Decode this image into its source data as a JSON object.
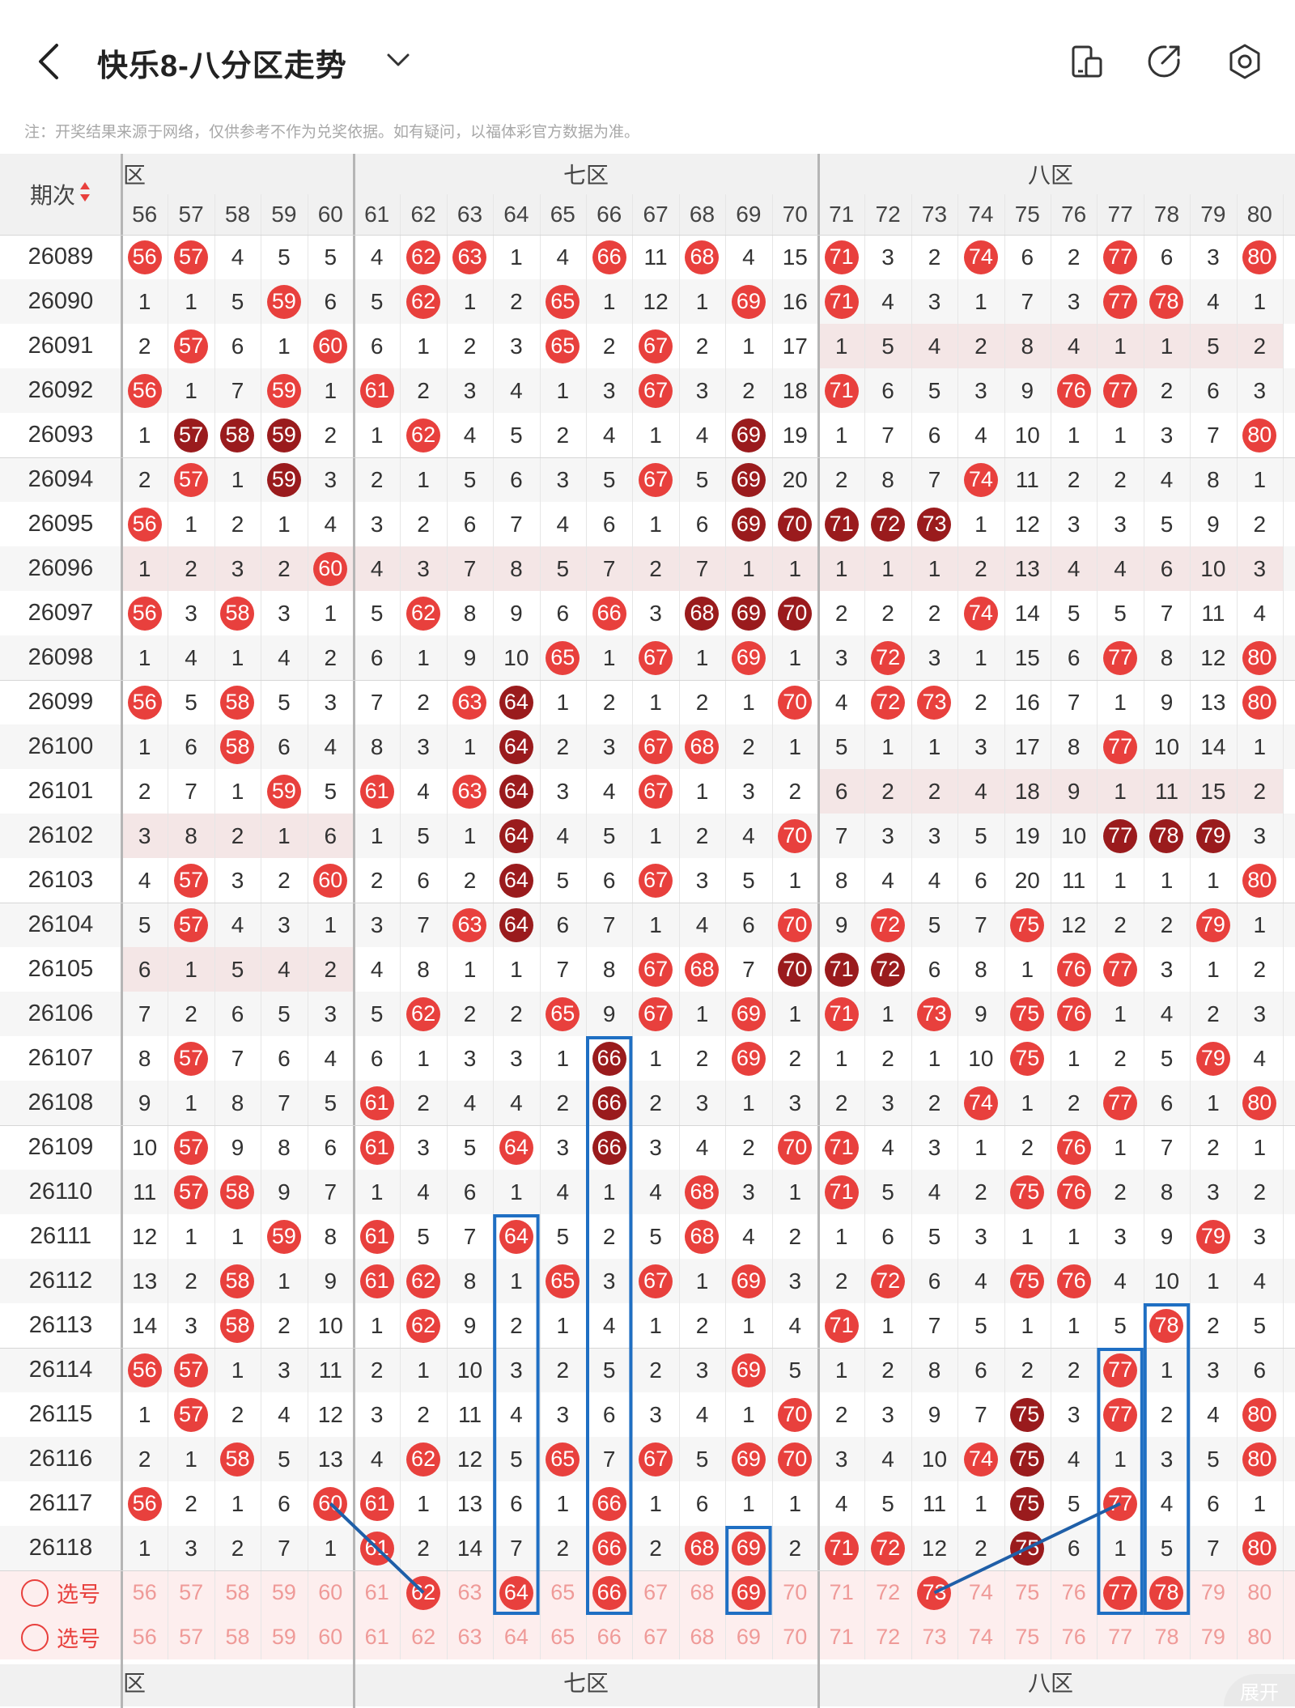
{
  "header": {
    "title": "快乐8-八分区走势",
    "back_icon": "back-arrow-icon",
    "dropdown_icon": "chevron-down-icon",
    "icons": [
      "device-switch-icon",
      "share-icon",
      "settings-icon"
    ]
  },
  "note": "注：开奖结果来源于网络，仅供参考不作为兑奖依据。如有疑问，以福体彩官方数据为准。",
  "table": {
    "period_label": "期次",
    "zones": [
      {
        "label": "六区",
        "shown": "区",
        "cols": [
          56,
          57,
          58,
          59,
          60
        ]
      },
      {
        "label": "七区",
        "shown": "七区",
        "cols": [
          61,
          62,
          63,
          64,
          65,
          66,
          67,
          68,
          69,
          70
        ]
      },
      {
        "label": "八区",
        "shown": "八区",
        "cols": [
          71,
          72,
          73,
          74,
          75,
          76,
          77,
          78,
          79,
          80
        ]
      }
    ],
    "columns": [
      56,
      57,
      58,
      59,
      60,
      61,
      62,
      63,
      64,
      65,
      66,
      67,
      68,
      69,
      70,
      71,
      72,
      73,
      74,
      75,
      76,
      77,
      78,
      79,
      80
    ],
    "rows": [
      {
        "p": "26089",
        "v": [
          "56",
          "57",
          "4",
          "5",
          "5",
          "4",
          "62",
          "63",
          "1",
          "4",
          "66",
          "11",
          "68",
          "4",
          "15",
          "71",
          "3",
          "2",
          "74",
          "6",
          "2",
          "77",
          "6",
          "3",
          "80"
        ]
      },
      {
        "p": "26090",
        "v": [
          "1",
          "1",
          "5",
          "59",
          "6",
          "5",
          "62",
          "1",
          "2",
          "65",
          "1",
          "12",
          "1",
          "69",
          "16",
          "71",
          "4",
          "3",
          "1",
          "7",
          "3",
          "77",
          "78",
          "4",
          "1"
        ]
      },
      {
        "p": "26091",
        "v": [
          "2",
          "57",
          "6",
          "1",
          "60",
          "6",
          "1",
          "2",
          "3",
          "65",
          "2",
          "67",
          "2",
          "1",
          "17",
          "1",
          "5",
          "4",
          "2",
          "8",
          "4",
          "1",
          "1",
          "5",
          "2"
        ]
      },
      {
        "p": "26092",
        "v": [
          "56",
          "1",
          "7",
          "59",
          "1",
          "61",
          "2",
          "3",
          "4",
          "1",
          "3",
          "67",
          "3",
          "2",
          "18",
          "71",
          "6",
          "5",
          "3",
          "9",
          "76",
          "77",
          "2",
          "6",
          "3"
        ]
      },
      {
        "p": "26093",
        "v": [
          "1",
          "57",
          "58",
          "59",
          "2",
          "1",
          "62",
          "4",
          "5",
          "2",
          "4",
          "1",
          "4",
          "69",
          "19",
          "1",
          "7",
          "6",
          "4",
          "10",
          "1",
          "1",
          "3",
          "7",
          "80"
        ]
      },
      {
        "p": "26094",
        "v": [
          "2",
          "57",
          "1",
          "59",
          "3",
          "2",
          "1",
          "5",
          "6",
          "3",
          "5",
          "67",
          "5",
          "69",
          "20",
          "2",
          "8",
          "7",
          "74",
          "11",
          "2",
          "2",
          "4",
          "8",
          "1"
        ]
      },
      {
        "p": "26095",
        "v": [
          "56",
          "1",
          "2",
          "1",
          "4",
          "3",
          "2",
          "6",
          "7",
          "4",
          "6",
          "1",
          "6",
          "69",
          "70",
          "71",
          "72",
          "73",
          "1",
          "12",
          "3",
          "3",
          "5",
          "9",
          "2"
        ]
      },
      {
        "p": "26096",
        "v": [
          "1",
          "2",
          "3",
          "2",
          "60",
          "4",
          "3",
          "7",
          "8",
          "5",
          "7",
          "2",
          "7",
          "1",
          "1",
          "1",
          "1",
          "1",
          "2",
          "13",
          "4",
          "4",
          "6",
          "10",
          "3"
        ]
      },
      {
        "p": "26097",
        "v": [
          "56",
          "3",
          "58",
          "3",
          "1",
          "5",
          "62",
          "8",
          "9",
          "6",
          "66",
          "3",
          "68",
          "69",
          "70",
          "2",
          "2",
          "2",
          "74",
          "14",
          "5",
          "5",
          "7",
          "11",
          "4"
        ]
      },
      {
        "p": "26098",
        "v": [
          "1",
          "4",
          "1",
          "4",
          "2",
          "6",
          "1",
          "9",
          "10",
          "65",
          "1",
          "67",
          "1",
          "69",
          "1",
          "3",
          "72",
          "3",
          "1",
          "15",
          "6",
          "77",
          "8",
          "12",
          "80"
        ]
      },
      {
        "p": "26099",
        "v": [
          "56",
          "5",
          "58",
          "5",
          "3",
          "7",
          "2",
          "63",
          "64",
          "1",
          "2",
          "1",
          "2",
          "1",
          "70",
          "4",
          "72",
          "73",
          "2",
          "16",
          "7",
          "1",
          "9",
          "13",
          "80"
        ]
      },
      {
        "p": "26100",
        "v": [
          "1",
          "6",
          "58",
          "6",
          "4",
          "8",
          "3",
          "1",
          "64",
          "2",
          "3",
          "67",
          "68",
          "2",
          "1",
          "5",
          "1",
          "1",
          "3",
          "17",
          "8",
          "77",
          "10",
          "14",
          "1"
        ]
      },
      {
        "p": "26101",
        "v": [
          "2",
          "7",
          "1",
          "59",
          "5",
          "61",
          "4",
          "63",
          "64",
          "3",
          "4",
          "67",
          "1",
          "3",
          "2",
          "6",
          "2",
          "2",
          "4",
          "18",
          "9",
          "1",
          "11",
          "15",
          "2"
        ]
      },
      {
        "p": "26102",
        "v": [
          "3",
          "8",
          "2",
          "1",
          "6",
          "1",
          "5",
          "1",
          "64",
          "4",
          "5",
          "1",
          "2",
          "4",
          "70",
          "7",
          "3",
          "3",
          "5",
          "19",
          "10",
          "77",
          "78",
          "79",
          "3"
        ]
      },
      {
        "p": "26103",
        "v": [
          "4",
          "57",
          "3",
          "2",
          "60",
          "2",
          "6",
          "2",
          "64",
          "5",
          "6",
          "67",
          "3",
          "5",
          "1",
          "8",
          "4",
          "4",
          "6",
          "20",
          "11",
          "1",
          "1",
          "1",
          "80"
        ]
      },
      {
        "p": "26104",
        "v": [
          "5",
          "57",
          "4",
          "3",
          "1",
          "3",
          "7",
          "63",
          "64",
          "6",
          "7",
          "1",
          "4",
          "6",
          "70",
          "9",
          "72",
          "5",
          "7",
          "75",
          "12",
          "2",
          "2",
          "79",
          "1"
        ]
      },
      {
        "p": "26105",
        "v": [
          "6",
          "1",
          "5",
          "4",
          "2",
          "4",
          "8",
          "1",
          "1",
          "7",
          "8",
          "67",
          "68",
          "7",
          "70",
          "71",
          "72",
          "6",
          "8",
          "1",
          "76",
          "77",
          "3",
          "1",
          "2"
        ]
      },
      {
        "p": "26106",
        "v": [
          "7",
          "2",
          "6",
          "5",
          "3",
          "5",
          "62",
          "2",
          "2",
          "65",
          "9",
          "67",
          "1",
          "69",
          "1",
          "71",
          "1",
          "73",
          "9",
          "75",
          "76",
          "1",
          "4",
          "2",
          "3"
        ]
      },
      {
        "p": "26107",
        "v": [
          "8",
          "57",
          "7",
          "6",
          "4",
          "6",
          "1",
          "3",
          "3",
          "1",
          "66",
          "1",
          "2",
          "69",
          "2",
          "1",
          "2",
          "1",
          "10",
          "75",
          "1",
          "2",
          "5",
          "79",
          "4"
        ]
      },
      {
        "p": "26108",
        "v": [
          "9",
          "1",
          "8",
          "7",
          "5",
          "61",
          "2",
          "4",
          "4",
          "2",
          "66",
          "2",
          "3",
          "1",
          "3",
          "2",
          "3",
          "2",
          "74",
          "1",
          "2",
          "77",
          "6",
          "1",
          "80"
        ]
      },
      {
        "p": "26109",
        "v": [
          "10",
          "57",
          "9",
          "8",
          "6",
          "61",
          "3",
          "5",
          "64",
          "3",
          "66",
          "3",
          "4",
          "2",
          "70",
          "71",
          "4",
          "3",
          "1",
          "2",
          "76",
          "1",
          "7",
          "2",
          "1"
        ]
      },
      {
        "p": "26110",
        "v": [
          "11",
          "57",
          "58",
          "9",
          "7",
          "1",
          "4",
          "6",
          "1",
          "4",
          "1",
          "4",
          "68",
          "3",
          "1",
          "71",
          "5",
          "4",
          "2",
          "75",
          "76",
          "2",
          "8",
          "3",
          "2"
        ]
      },
      {
        "p": "26111",
        "v": [
          "12",
          "1",
          "1",
          "59",
          "8",
          "61",
          "5",
          "7",
          "64",
          "5",
          "2",
          "5",
          "68",
          "4",
          "2",
          "1",
          "6",
          "5",
          "3",
          "1",
          "1",
          "3",
          "9",
          "79",
          "3"
        ]
      },
      {
        "p": "26112",
        "v": [
          "13",
          "2",
          "58",
          "1",
          "9",
          "61",
          "62",
          "8",
          "1",
          "65",
          "3",
          "67",
          "1",
          "69",
          "3",
          "2",
          "72",
          "6",
          "4",
          "75",
          "76",
          "4",
          "10",
          "1",
          "4"
        ]
      },
      {
        "p": "26113",
        "v": [
          "14",
          "3",
          "58",
          "2",
          "10",
          "1",
          "62",
          "9",
          "2",
          "1",
          "4",
          "1",
          "2",
          "1",
          "4",
          "71",
          "1",
          "7",
          "5",
          "1",
          "1",
          "5",
          "78",
          "2",
          "5"
        ]
      },
      {
        "p": "26114",
        "v": [
          "56",
          "57",
          "1",
          "3",
          "11",
          "2",
          "1",
          "10",
          "3",
          "2",
          "5",
          "2",
          "3",
          "69",
          "5",
          "1",
          "2",
          "8",
          "6",
          "2",
          "2",
          "77",
          "1",
          "3",
          "6"
        ]
      },
      {
        "p": "26115",
        "v": [
          "1",
          "57",
          "2",
          "4",
          "12",
          "3",
          "2",
          "11",
          "4",
          "3",
          "6",
          "3",
          "4",
          "1",
          "70",
          "2",
          "3",
          "9",
          "7",
          "75",
          "3",
          "77",
          "2",
          "4",
          "80"
        ]
      },
      {
        "p": "26116",
        "v": [
          "2",
          "1",
          "58",
          "5",
          "13",
          "4",
          "62",
          "12",
          "5",
          "65",
          "7",
          "67",
          "5",
          "69",
          "70",
          "3",
          "4",
          "10",
          "74",
          "75",
          "4",
          "1",
          "3",
          "5",
          "80"
        ]
      },
      {
        "p": "26117",
        "v": [
          "56",
          "2",
          "1",
          "6",
          "60",
          "61",
          "1",
          "13",
          "6",
          "1",
          "66",
          "1",
          "6",
          "1",
          "1",
          "4",
          "5",
          "11",
          "1",
          "75",
          "5",
          "77",
          "4",
          "6",
          "1"
        ]
      },
      {
        "p": "26118",
        "v": [
          "1",
          "3",
          "2",
          "7",
          "1",
          "61",
          "2",
          "14",
          "7",
          "2",
          "66",
          "2",
          "68",
          "69",
          "2",
          "71",
          "72",
          "12",
          "2",
          "75",
          "6",
          "1",
          "5",
          "7",
          "80"
        ]
      }
    ],
    "dark": {
      "26093": [
        "57",
        "58",
        "59",
        "69"
      ],
      "26094": [
        "59",
        "69"
      ],
      "26095": [
        "69",
        "70",
        "71",
        "72",
        "73"
      ],
      "26097": [
        "68",
        "69",
        "70"
      ],
      "26099": [
        "64"
      ],
      "26100": [
        "64"
      ],
      "26101": [
        "64"
      ],
      "26102": [
        "64",
        "77",
        "78",
        "79"
      ],
      "26103": [
        "64"
      ],
      "26104": [
        "64"
      ],
      "26105": [
        "70",
        "71",
        "72"
      ],
      "26107": [
        "66"
      ],
      "26108": [
        "66"
      ],
      "26109": [
        "66"
      ],
      "26115": [
        "75"
      ],
      "26116": [
        "75"
      ],
      "26117": [
        "75"
      ],
      "26118": [
        "75"
      ]
    },
    "select_label": "选号",
    "select_picked": [
      "62",
      "64",
      "66",
      "69",
      "73",
      "77",
      "78"
    ],
    "footer_zones": [
      "区",
      "七区",
      "八区"
    ],
    "expand_label": "展开"
  }
}
